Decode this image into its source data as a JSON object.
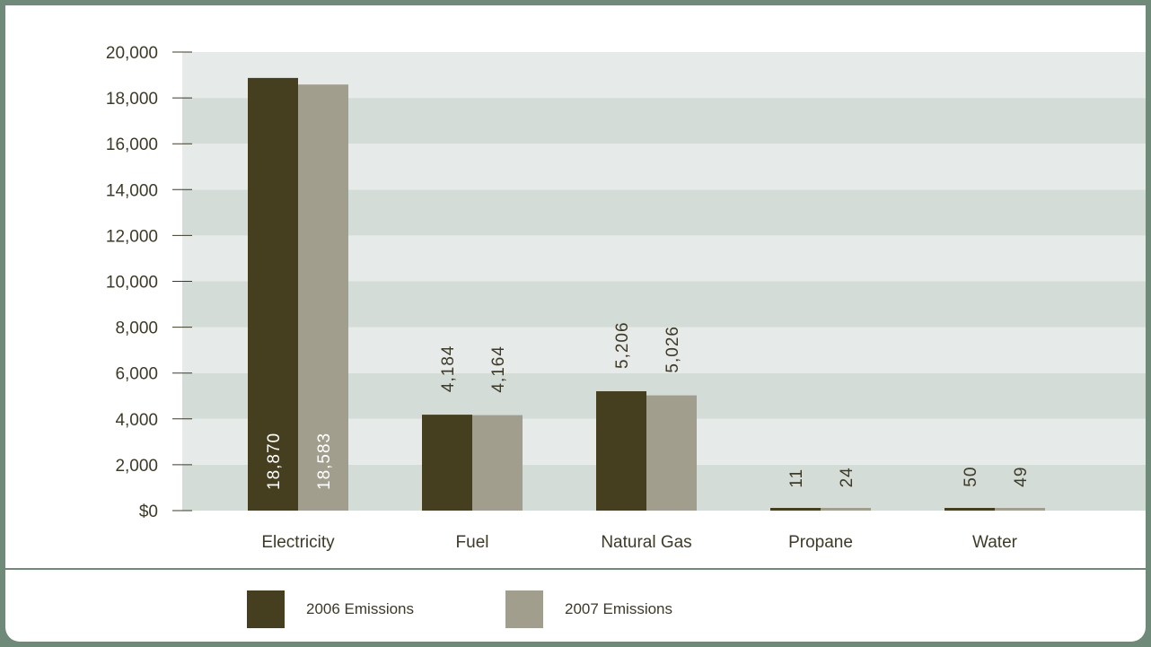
{
  "chart_data": {
    "type": "bar",
    "categories": [
      "Electricity",
      "Fuel",
      "Natural Gas",
      "Propane",
      "Water"
    ],
    "series": [
      {
        "name": "2006 Emissions",
        "values": [
          18870,
          4184,
          5206,
          11,
          50
        ],
        "labels": [
          "18,870",
          "4,184",
          "5,206",
          "11",
          "50"
        ],
        "color": "#463f1f"
      },
      {
        "name": "2007 Emissions",
        "values": [
          18583,
          4164,
          5026,
          24,
          49
        ],
        "labels": [
          "18,583",
          "4,164",
          "5,026",
          "24",
          "49"
        ],
        "color": "#a29e8d"
      }
    ],
    "y_ticks": [
      "$0",
      "2,000",
      "4,000",
      "6,000",
      "8,000",
      "10,000",
      "12,000",
      "14,000",
      "16,000",
      "18,000",
      "20,000"
    ],
    "ylim": [
      0,
      20000
    ],
    "title": "",
    "xlabel": "",
    "ylabel": "",
    "grid": true,
    "legend_position": "bottom",
    "colors": {
      "frame": "#6f8a78",
      "band_light": "#e6eae8",
      "band_dark": "#d3dcd7",
      "text": "#3d3a27"
    }
  }
}
